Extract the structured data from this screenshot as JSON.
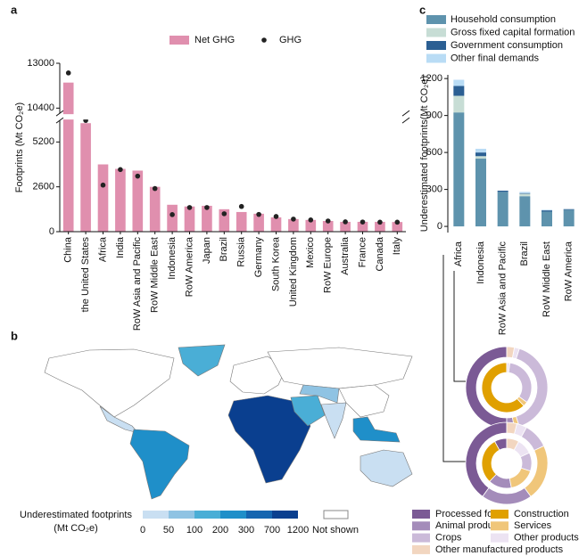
{
  "chart_data": [
    {
      "panel": "a",
      "type": "bar_dot",
      "ylabel": "Footprints (Mt CO₂e)",
      "categories": [
        "China",
        "the United States",
        "Africa",
        "India",
        "RoW Asia and Pacific",
        "RoW Middle East",
        "Indonesia",
        "RoW America",
        "Japan",
        "Brazil",
        "Russia",
        "Germany",
        "South Korea",
        "United Kingdom",
        "Mexico",
        "RoW Europe",
        "Australia",
        "France",
        "Canada",
        "Italy"
      ],
      "series": [
        {
          "name": "Net GHG",
          "marker": "bar",
          "color": "#e08fae",
          "values": [
            11880,
            6290,
            3900,
            3640,
            3540,
            2600,
            1560,
            1460,
            1500,
            1300,
            1140,
            1040,
            830,
            730,
            680,
            620,
            570,
            570,
            570,
            560
          ]
        },
        {
          "name": "GHG",
          "marker": "dot",
          "color": "#222222",
          "values": [
            12440,
            6450,
            2700,
            3600,
            3220,
            2500,
            990,
            1400,
            1400,
            1040,
            1460,
            1000,
            880,
            730,
            680,
            620,
            570,
            560,
            550,
            550
          ]
        }
      ],
      "ylim": [
        0,
        13000
      ],
      "ybreak": [
        6450,
        10100
      ],
      "yticks": [
        0,
        2600,
        5200,
        10400,
        13000
      ]
    },
    {
      "panel": "c",
      "type": "stacked_bar",
      "ylabel": "Underestimated footprints(Mt CO₂e)",
      "categories": [
        "Africa",
        "Indonesia",
        "RoW Asia and Pacific",
        "Brazil",
        "RoW Middle East",
        "RoW America"
      ],
      "series": [
        {
          "name": "Household consumption",
          "color": "#5e93ad",
          "values": [
            925,
            550,
            280,
            245,
            120,
            135
          ]
        },
        {
          "name": "Gross fixed capital formation",
          "color": "#c7ddd5",
          "values": [
            135,
            20,
            0,
            20,
            0,
            0
          ]
        },
        {
          "name": "Government consumption",
          "color": "#2b5f93",
          "values": [
            80,
            30,
            10,
            5,
            10,
            5
          ]
        },
        {
          "name": "Other final demands",
          "color": "#b9dcf5",
          "values": [
            50,
            30,
            0,
            10,
            5,
            0
          ]
        }
      ],
      "ylim": [
        -50,
        1230
      ],
      "yticks": [
        0,
        300,
        600,
        900,
        1200
      ]
    },
    {
      "panel": "b",
      "type": "choropleth",
      "legend_title": [
        "Underestimated footprints",
        "(Mt CO₂e)"
      ],
      "bins": [
        0,
        50,
        100,
        200,
        300,
        700,
        1200
      ],
      "colors": [
        "#c9dff2",
        "#8fc3e3",
        "#4aaed6",
        "#1f8fc9",
        "#1565b0",
        "#0a3f8f"
      ],
      "missing_label": "Not shown",
      "missing_color": "#ffffff"
    },
    {
      "type": "donut",
      "categories": [
        "Processed foods",
        "Construction",
        "Animal products",
        "Services",
        "Crops",
        "Other products",
        "Other manufactured products"
      ],
      "colors": [
        "#7b5a95",
        "#e0a000",
        "#a48cba",
        "#f0c67a",
        "#cbbad9",
        "#ece3f2",
        "#f2d6c0"
      ],
      "donuts": [
        {
          "rings": [
            [
              50,
              0,
              3,
              2,
              40,
              2,
              3
            ],
            [
              0,
              62,
              0,
              3,
              33,
              2,
              0
            ]
          ]
        },
        {
          "rings": [
            [
              40,
              0,
              20,
              22,
              10,
              4,
              4
            ],
            [
              8,
              30,
              15,
              17,
              12,
              10,
              8
            ]
          ]
        }
      ]
    }
  ]
}
